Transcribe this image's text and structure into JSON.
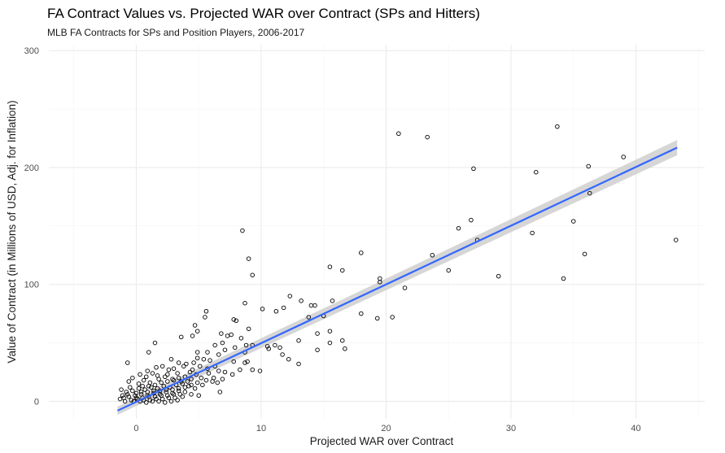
{
  "chart_data": {
    "type": "scatter",
    "title": "FA Contract Values vs. Projected WAR over Contract (SPs and Hitters)",
    "subtitle": "MLB FA Contracts for SPs and Position Players, 2006-2017",
    "xlabel": "Projected WAR over Contract",
    "ylabel": "Value of Contract (in Millions of USD, Adj. for Inflation)",
    "xlim": [
      -7,
      45.5
    ],
    "ylim": [
      -15,
      305
    ],
    "x_ticks": [
      0,
      10,
      20,
      30,
      40
    ],
    "y_ticks": [
      0,
      100,
      200,
      300
    ],
    "grid": true,
    "legend": "none",
    "colors": {
      "points": "#000000",
      "fit_line": "#3366ff",
      "confidence_band": "#cccccc",
      "grid_major": "#ebebeb",
      "grid_minor": "#f5f5f5"
    },
    "fit_line": {
      "x": [
        -1.5,
        43.3
      ],
      "y": [
        -8,
        217
      ],
      "band_halfwidth_at_ends": [
        3.5,
        6.5
      ]
    },
    "points": [
      {
        "x": 8.5,
        "y": 146
      },
      {
        "x": 9.0,
        "y": 122
      },
      {
        "x": 9.3,
        "y": 108
      },
      {
        "x": 15.5,
        "y": 115
      },
      {
        "x": 16.5,
        "y": 112
      },
      {
        "x": 18.0,
        "y": 127
      },
      {
        "x": 19.5,
        "y": 105
      },
      {
        "x": 19.5,
        "y": 102
      },
      {
        "x": 21.0,
        "y": 229
      },
      {
        "x": 23.3,
        "y": 226
      },
      {
        "x": 23.7,
        "y": 125
      },
      {
        "x": 21.5,
        "y": 97
      },
      {
        "x": 20.5,
        "y": 72
      },
      {
        "x": 19.3,
        "y": 71
      },
      {
        "x": 18.0,
        "y": 75
      },
      {
        "x": 25.0,
        "y": 112
      },
      {
        "x": 25.8,
        "y": 148
      },
      {
        "x": 26.8,
        "y": 155
      },
      {
        "x": 27.0,
        "y": 199
      },
      {
        "x": 27.3,
        "y": 138
      },
      {
        "x": 29.0,
        "y": 107
      },
      {
        "x": 31.7,
        "y": 144
      },
      {
        "x": 32.0,
        "y": 196
      },
      {
        "x": 33.7,
        "y": 235
      },
      {
        "x": 34.2,
        "y": 105
      },
      {
        "x": 35.0,
        "y": 154
      },
      {
        "x": 35.9,
        "y": 126
      },
      {
        "x": 36.2,
        "y": 201
      },
      {
        "x": 36.3,
        "y": 178
      },
      {
        "x": 39.0,
        "y": 209
      },
      {
        "x": 43.2,
        "y": 138
      },
      {
        "x": 12.3,
        "y": 90
      },
      {
        "x": 11.8,
        "y": 80
      },
      {
        "x": 11.2,
        "y": 77
      },
      {
        "x": 14.0,
        "y": 82
      },
      {
        "x": 14.3,
        "y": 82
      },
      {
        "x": 15.7,
        "y": 86
      },
      {
        "x": 13.2,
        "y": 86
      },
      {
        "x": 13.8,
        "y": 72
      },
      {
        "x": 15.0,
        "y": 73
      },
      {
        "x": 15.5,
        "y": 60
      },
      {
        "x": 16.5,
        "y": 52
      },
      {
        "x": 16.7,
        "y": 45
      },
      {
        "x": 15.5,
        "y": 50
      },
      {
        "x": 14.5,
        "y": 44
      },
      {
        "x": 14.5,
        "y": 58
      },
      {
        "x": 13.0,
        "y": 52
      },
      {
        "x": 13.0,
        "y": 32
      },
      {
        "x": 12.2,
        "y": 36
      },
      {
        "x": 11.7,
        "y": 40
      },
      {
        "x": 11.5,
        "y": 46
      },
      {
        "x": 11.1,
        "y": 48
      },
      {
        "x": 10.5,
        "y": 47
      },
      {
        "x": 10.6,
        "y": 45
      },
      {
        "x": 9.3,
        "y": 48
      },
      {
        "x": 9.9,
        "y": 26
      },
      {
        "x": 9.3,
        "y": 27
      },
      {
        "x": 10.1,
        "y": 79
      },
      {
        "x": 8.7,
        "y": 84
      },
      {
        "x": 7.8,
        "y": 70
      },
      {
        "x": 8.0,
        "y": 69
      },
      {
        "x": 7.6,
        "y": 57
      },
      {
        "x": 7.3,
        "y": 56
      },
      {
        "x": 7.9,
        "y": 46
      },
      {
        "x": 8.7,
        "y": 42
      },
      {
        "x": 8.9,
        "y": 34
      },
      {
        "x": 8.7,
        "y": 33
      },
      {
        "x": 7.8,
        "y": 34
      },
      {
        "x": 7.7,
        "y": 23
      },
      {
        "x": 8.3,
        "y": 27
      },
      {
        "x": 9.0,
        "y": 62
      },
      {
        "x": 8.4,
        "y": 54
      },
      {
        "x": 8.8,
        "y": 48
      },
      {
        "x": 5.6,
        "y": 77
      },
      {
        "x": 5.5,
        "y": 72
      },
      {
        "x": 4.7,
        "y": 65
      },
      {
        "x": 4.5,
        "y": 56
      },
      {
        "x": 4.9,
        "y": 60
      },
      {
        "x": 3.6,
        "y": 55
      },
      {
        "x": 1.5,
        "y": 50
      },
      {
        "x": 1.0,
        "y": 42
      },
      {
        "x": -0.7,
        "y": 33
      },
      {
        "x": 6.8,
        "y": 58
      },
      {
        "x": 6.9,
        "y": 50
      },
      {
        "x": 7.1,
        "y": 44
      },
      {
        "x": 6.3,
        "y": 48
      },
      {
        "x": 6.6,
        "y": 40
      },
      {
        "x": 5.7,
        "y": 42
      },
      {
        "x": 4.9,
        "y": 42
      },
      {
        "x": 4.9,
        "y": 37
      },
      {
        "x": 5.4,
        "y": 36
      },
      {
        "x": 6.3,
        "y": 30
      },
      {
        "x": 6.6,
        "y": 26
      },
      {
        "x": 7.1,
        "y": 25
      },
      {
        "x": 6.9,
        "y": 19
      },
      {
        "x": 6.5,
        "y": 16
      },
      {
        "x": 6.1,
        "y": 17
      },
      {
        "x": 6.7,
        "y": 8
      },
      {
        "x": 6.2,
        "y": 20
      },
      {
        "x": 5.7,
        "y": 28
      },
      {
        "x": 4.5,
        "y": 27
      },
      {
        "x": 4.0,
        "y": 32
      },
      {
        "x": 3.8,
        "y": 30
      },
      {
        "x": 3.4,
        "y": 33
      },
      {
        "x": 3.0,
        "y": 28
      },
      {
        "x": 2.8,
        "y": 36
      },
      {
        "x": 2.6,
        "y": 27
      },
      {
        "x": 2.1,
        "y": 30
      },
      {
        "x": 1.6,
        "y": 29
      },
      {
        "x": 1.3,
        "y": 24
      },
      {
        "x": 0.9,
        "y": 26
      },
      {
        "x": 0.3,
        "y": 23
      },
      {
        "x": -0.3,
        "y": 20
      },
      {
        "x": -0.6,
        "y": 17
      },
      {
        "x": 0.2,
        "y": 15
      },
      {
        "x": 0.6,
        "y": 18
      },
      {
        "x": 1.1,
        "y": 16
      },
      {
        "x": 1.8,
        "y": 19
      },
      {
        "x": 2.3,
        "y": 21
      },
      {
        "x": 2.9,
        "y": 19
      },
      {
        "x": 3.4,
        "y": 20
      },
      {
        "x": 3.9,
        "y": 21
      },
      {
        "x": 4.4,
        "y": 19
      },
      {
        "x": 4.8,
        "y": 23
      },
      {
        "x": 5.2,
        "y": 20
      },
      {
        "x": 5.3,
        "y": 14
      },
      {
        "x": 4.7,
        "y": 11
      },
      {
        "x": 4.2,
        "y": 13
      },
      {
        "x": 3.7,
        "y": 15
      },
      {
        "x": 3.2,
        "y": 14
      },
      {
        "x": 2.7,
        "y": 12
      },
      {
        "x": 2.2,
        "y": 13
      },
      {
        "x": 1.7,
        "y": 11
      },
      {
        "x": 1.2,
        "y": 12
      },
      {
        "x": 0.7,
        "y": 10
      },
      {
        "x": 0.2,
        "y": 11
      },
      {
        "x": -0.3,
        "y": 9
      },
      {
        "x": -0.8,
        "y": 8
      },
      {
        "x": -1.1,
        "y": 5
      },
      {
        "x": -0.6,
        "y": 4
      },
      {
        "x": -0.1,
        "y": 5
      },
      {
        "x": 0.4,
        "y": 6
      },
      {
        "x": 0.9,
        "y": 5
      },
      {
        "x": 1.4,
        "y": 7
      },
      {
        "x": 1.9,
        "y": 6
      },
      {
        "x": 2.4,
        "y": 8
      },
      {
        "x": 2.9,
        "y": 7
      },
      {
        "x": 3.4,
        "y": 9
      },
      {
        "x": 3.9,
        "y": 8
      },
      {
        "x": 4.4,
        "y": 6
      },
      {
        "x": 5.0,
        "y": 5
      },
      {
        "x": 3.7,
        "y": 4
      },
      {
        "x": 3.1,
        "y": 3
      },
      {
        "x": 2.6,
        "y": 3
      },
      {
        "x": 2.1,
        "y": 2
      },
      {
        "x": 1.6,
        "y": 2
      },
      {
        "x": 1.1,
        "y": 1
      },
      {
        "x": 0.6,
        "y": 1
      },
      {
        "x": 0.1,
        "y": 2
      },
      {
        "x": -0.4,
        "y": 1
      },
      {
        "x": -0.9,
        "y": 0
      },
      {
        "x": -1.3,
        "y": 2
      },
      {
        "x": -1.0,
        "y": 3
      },
      {
        "x": -0.2,
        "y": 0
      },
      {
        "x": 0.3,
        "y": 0
      },
      {
        "x": 0.8,
        "y": -1
      },
      {
        "x": 1.3,
        "y": 0
      },
      {
        "x": 1.8,
        "y": 0
      },
      {
        "x": 2.3,
        "y": -1
      },
      {
        "x": 2.8,
        "y": 0
      },
      {
        "x": 3.3,
        "y": 1
      },
      {
        "x": 0.0,
        "y": 3
      },
      {
        "x": 0.5,
        "y": 3
      },
      {
        "x": 1.0,
        "y": 4
      },
      {
        "x": 1.5,
        "y": 4
      },
      {
        "x": 2.0,
        "y": 5
      },
      {
        "x": 2.5,
        "y": 5
      },
      {
        "x": 3.0,
        "y": 6
      },
      {
        "x": 3.5,
        "y": 6
      },
      {
        "x": 1.9,
        "y": 9
      },
      {
        "x": 1.4,
        "y": 9
      },
      {
        "x": 0.9,
        "y": 8
      },
      {
        "x": 0.4,
        "y": 8
      },
      {
        "x": 2.4,
        "y": 10
      },
      {
        "x": 2.9,
        "y": 10
      },
      {
        "x": 3.4,
        "y": 11
      },
      {
        "x": 3.9,
        "y": 12
      },
      {
        "x": 4.4,
        "y": 14
      },
      {
        "x": 4.9,
        "y": 16
      },
      {
        "x": 2.0,
        "y": 16
      },
      {
        "x": 2.5,
        "y": 17
      },
      {
        "x": 1.5,
        "y": 14
      },
      {
        "x": 1.0,
        "y": 13
      },
      {
        "x": 0.5,
        "y": 13
      },
      {
        "x": -0.5,
        "y": 12
      },
      {
        "x": -1.2,
        "y": 10
      },
      {
        "x": 0.0,
        "y": 7
      },
      {
        "x": -0.7,
        "y": 6
      },
      {
        "x": 5.8,
        "y": 24
      },
      {
        "x": 5.1,
        "y": 30
      },
      {
        "x": 4.3,
        "y": 25
      },
      {
        "x": 3.3,
        "y": 24
      },
      {
        "x": 2.5,
        "y": 23
      },
      {
        "x": 1.7,
        "y": 22
      },
      {
        "x": 0.8,
        "y": 21
      },
      {
        "x": 3.0,
        "y": 18
      },
      {
        "x": 3.6,
        "y": 17
      },
      {
        "x": 4.1,
        "y": 17
      },
      {
        "x": 5.6,
        "y": 18
      },
      {
        "x": 4.6,
        "y": 33
      },
      {
        "x": 5.9,
        "y": 35
      }
    ]
  }
}
